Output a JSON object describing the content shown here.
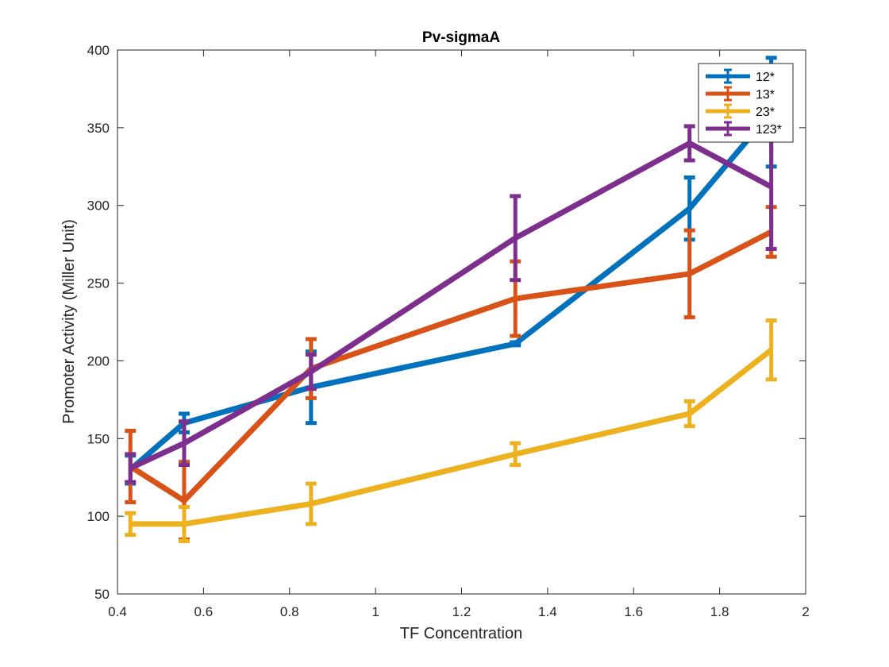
{
  "chart_data": {
    "type": "line",
    "title": "Pv-sigmaA",
    "xlabel": "TF Concentration",
    "ylabel": "Promoter Activity (Miller Unit)",
    "xlim": [
      0.4,
      2
    ],
    "ylim": [
      50,
      400
    ],
    "x_ticks": [
      "0.4",
      "0.6",
      "0.8",
      "1",
      "1.2",
      "1.4",
      "1.6",
      "1.8",
      "2"
    ],
    "y_ticks": [
      "50",
      "100",
      "150",
      "200",
      "250",
      "300",
      "350",
      "400"
    ],
    "grid": false,
    "legend_position": "top-right",
    "x": [
      0.43,
      0.555,
      0.85,
      1.325,
      1.73,
      1.92
    ],
    "series": [
      {
        "name": "12*",
        "color": "#0072BD",
        "values": [
          130,
          160,
          183,
          211,
          298,
          360
        ],
        "errors": [
          9,
          6,
          23,
          1,
          20,
          35
        ]
      },
      {
        "name": "13*",
        "color": "#D95319",
        "values": [
          132,
          110,
          195,
          240,
          256,
          283
        ],
        "errors": [
          23,
          25,
          19,
          24,
          28,
          16
        ]
      },
      {
        "name": "23*",
        "color": "#EDB120",
        "values": [
          95,
          95,
          108,
          140,
          166,
          207
        ],
        "errors": [
          7,
          11,
          13,
          7,
          8,
          19
        ]
      },
      {
        "name": "123*",
        "color": "#7E2F8E",
        "values": [
          131,
          147,
          193,
          279,
          340,
          312
        ],
        "errors": [
          9,
          14,
          11,
          27,
          11,
          40
        ]
      }
    ]
  }
}
